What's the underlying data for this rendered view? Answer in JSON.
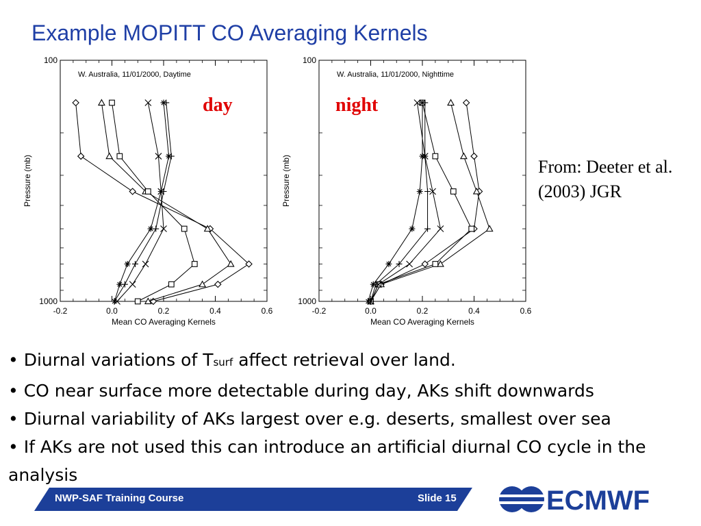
{
  "slide": {
    "title": "Example MOPITT CO Averaging Kernels",
    "overlay_day": "day",
    "overlay_night": "night",
    "citation": "From: Deeter et al. (2003) JGR",
    "bullets": {
      "b1_pre": "Diurnal variations of T",
      "b1_sub": "surf",
      "b1_post": " affect retrieval over land.",
      "b2": "CO near surface more detectable during day, AKs shift downwards",
      "b3": "Diurnal variability of AKs largest over e.g. deserts, smallest over sea",
      "b4": "If AKs are not used this can introduce an artificial diurnal CO cycle in the analysis"
    },
    "bullet_glyph": "•",
    "footer": {
      "course": "NWP-SAF Training Course",
      "slide": "Slide 15"
    },
    "logo_text": "ECMWF",
    "colors": {
      "title": "#1f3fa6",
      "overlay": "#e00000",
      "footer": "#1c3f99"
    }
  },
  "chart_data": [
    {
      "type": "line",
      "title": "W. Australia, 11/01/2000, Daytime",
      "xlabel": "Mean CO Averaging Kernels",
      "ylabel": "Pressure (mb)",
      "xlim": [
        -0.2,
        0.6
      ],
      "xticks": [
        "-0.2",
        "0.0",
        "0.2",
        "0.4",
        "0.6"
      ],
      "yscale": "log",
      "ylim": [
        1000,
        100
      ],
      "yticks": [
        "100",
        "1000"
      ],
      "pressure_levels": [
        150,
        250,
        350,
        500,
        700,
        850,
        1000
      ],
      "series": [
        {
          "marker": "diamond",
          "values": [
            -0.14,
            -0.12,
            0.08,
            0.38,
            0.53,
            0.41,
            0.16
          ]
        },
        {
          "marker": "triangle",
          "values": [
            -0.04,
            -0.01,
            0.13,
            0.37,
            0.46,
            0.35,
            0.14
          ]
        },
        {
          "marker": "square",
          "values": [
            0.0,
            0.03,
            0.14,
            0.28,
            0.32,
            0.23,
            0.1
          ]
        },
        {
          "marker": "x",
          "values": [
            0.14,
            0.18,
            0.19,
            0.2,
            0.13,
            0.08,
            0.02
          ]
        },
        {
          "marker": "plus",
          "values": [
            0.21,
            0.23,
            0.2,
            0.17,
            0.09,
            0.05,
            0.01
          ]
        },
        {
          "marker": "asterisk",
          "values": [
            0.2,
            0.22,
            0.19,
            0.15,
            0.06,
            0.03,
            0.01
          ]
        }
      ]
    },
    {
      "type": "line",
      "title": "W. Australia, 11/01/2000, Nighttime",
      "xlabel": "Mean CO Averaging Kernels",
      "ylabel": "Pressure (mb)",
      "xlim": [
        -0.2,
        0.6
      ],
      "xticks": [
        "-0.2",
        "0.0",
        "0.2",
        "0.4",
        "0.6"
      ],
      "yscale": "log",
      "ylim": [
        1000,
        100
      ],
      "yticks": [
        "100",
        "1000"
      ],
      "pressure_levels": [
        150,
        250,
        350,
        500,
        700,
        850,
        1000
      ],
      "series": [
        {
          "marker": "diamond",
          "values": [
            0.37,
            0.4,
            0.42,
            0.4,
            0.21,
            0.04,
            0.0
          ]
        },
        {
          "marker": "triangle",
          "values": [
            0.31,
            0.36,
            0.41,
            0.46,
            0.27,
            0.04,
            0.0
          ]
        },
        {
          "marker": "square",
          "values": [
            0.2,
            0.25,
            0.32,
            0.39,
            0.25,
            0.03,
            0.0
          ]
        },
        {
          "marker": "x",
          "values": [
            0.18,
            0.21,
            0.24,
            0.27,
            0.15,
            0.03,
            0.0
          ]
        },
        {
          "marker": "plus",
          "values": [
            0.21,
            0.21,
            0.22,
            0.22,
            0.11,
            0.02,
            0.0
          ]
        },
        {
          "marker": "asterisk",
          "values": [
            0.2,
            0.2,
            0.19,
            0.16,
            0.07,
            0.01,
            -0.01
          ]
        }
      ]
    }
  ]
}
